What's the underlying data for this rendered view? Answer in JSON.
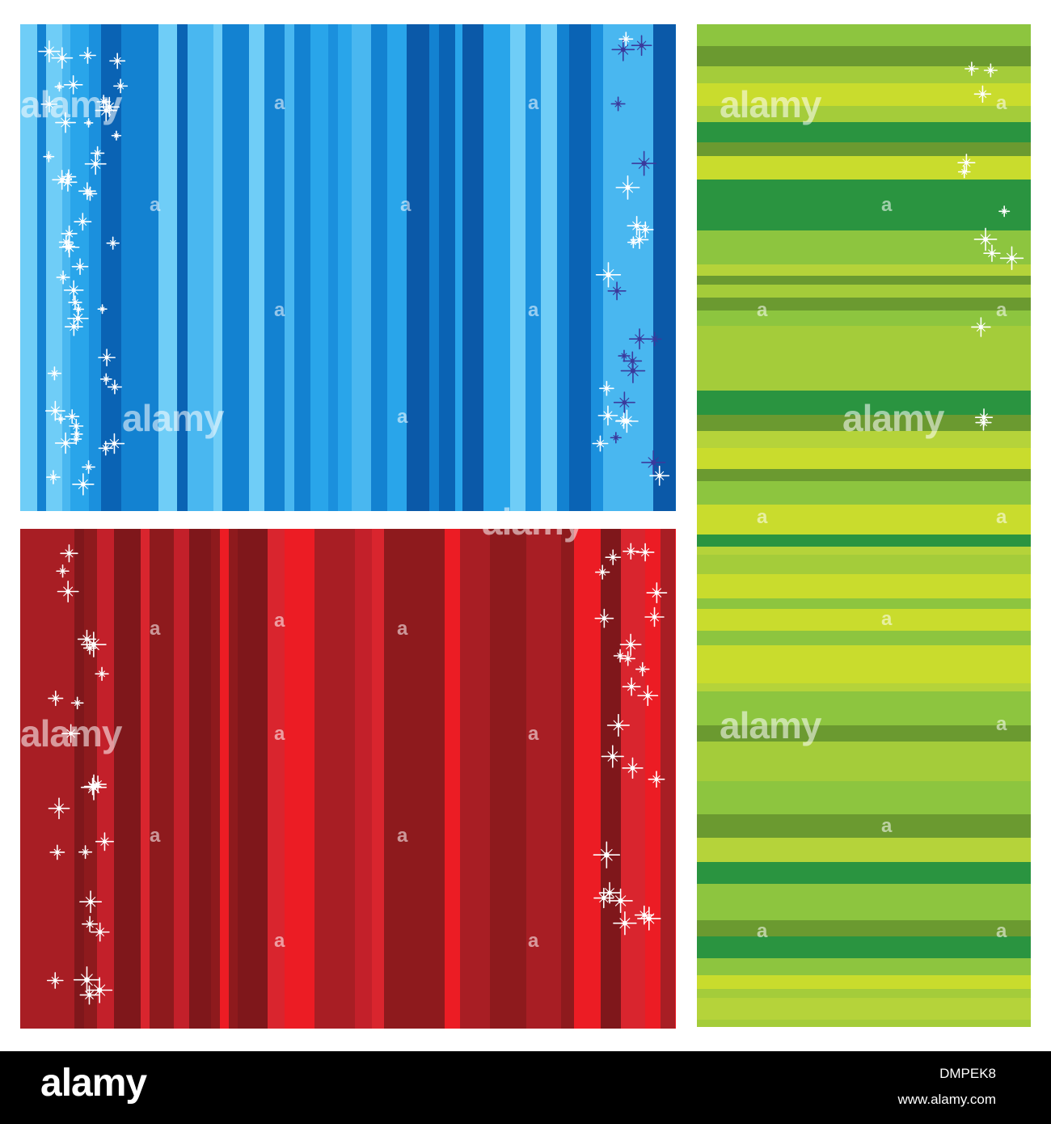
{
  "watermark": {
    "text": "alamy",
    "small_text": "a"
  },
  "footer": {
    "logo": "alamy",
    "image_id": "DMPEK8",
    "url": "www.alamy.com"
  },
  "panels": {
    "blue": {
      "palette": [
        "#0a63b4",
        "#1382d1",
        "#29a5ea",
        "#6fcdf7",
        "#0b59a8",
        "#1b90dd",
        "#49b7f0"
      ],
      "sparkle_color": "#ffffff",
      "sparkle_dark": "#3a3a9c"
    },
    "red": {
      "palette": [
        "#8e1a1d",
        "#c3202a",
        "#ec1c24",
        "#a81e24",
        "#d9252e",
        "#7f171b"
      ],
      "sparkle_color": "#ffffff"
    },
    "green": {
      "palette": [
        "#c9dc2d",
        "#8dc53f",
        "#6b9a30",
        "#2a9440",
        "#b5d33a",
        "#a4cc3a"
      ],
      "sparkle_color": "#ffffff"
    }
  }
}
